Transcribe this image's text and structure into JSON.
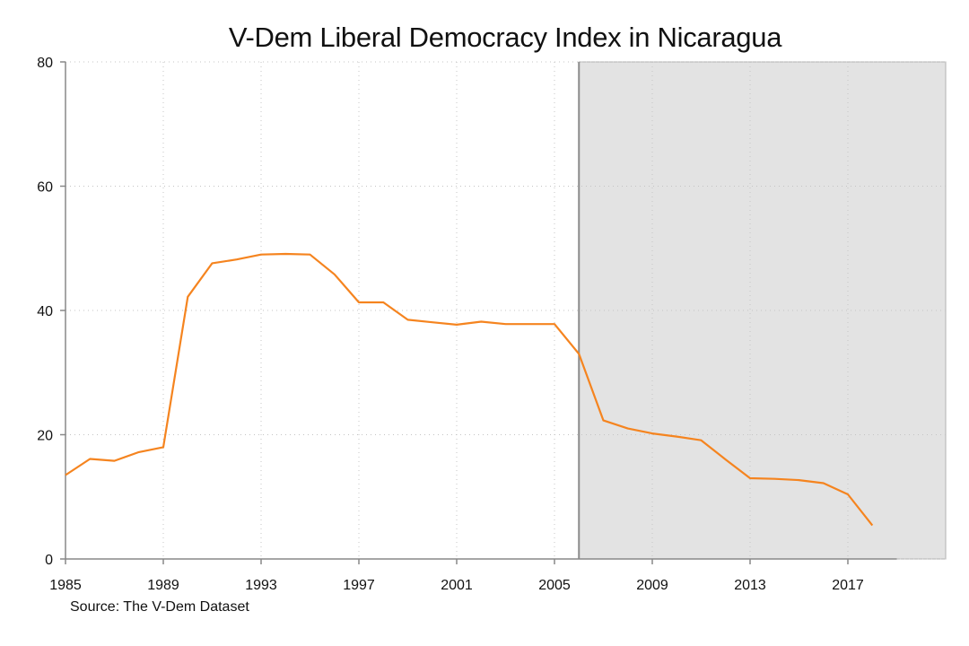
{
  "chart_data": {
    "type": "line",
    "title": "V-Dem Liberal Democracy Index in Nicaragua",
    "source": "Source: The V-Dem Dataset",
    "xlabel": "",
    "ylabel": "",
    "xlim": [
      1985,
      2021
    ],
    "ylim": [
      0,
      80
    ],
    "x_ticks": [
      1985,
      1989,
      1993,
      1997,
      2001,
      2005,
      2009,
      2013,
      2017
    ],
    "y_ticks": [
      0,
      20,
      40,
      60,
      80
    ],
    "grid": true,
    "shaded_region": {
      "x_start": 2006,
      "x_end": 2021,
      "color": "#e3e3e3"
    },
    "series": [
      {
        "color": "#f5841f",
        "x": [
          1985,
          1986,
          1987,
          1988,
          1989,
          1990,
          1991,
          1992,
          1993,
          1994,
          1995,
          1996,
          1997,
          1998,
          1999,
          2000,
          2001,
          2002,
          2003,
          2004,
          2005,
          2006,
          2007,
          2008,
          2009,
          2010,
          2011,
          2012,
          2013,
          2014,
          2015,
          2016,
          2017,
          2018
        ],
        "y": [
          13.5,
          16.1,
          15.8,
          17.2,
          18.0,
          42.2,
          47.6,
          48.2,
          49.0,
          49.1,
          49.0,
          45.8,
          41.3,
          41.3,
          38.5,
          38.1,
          37.7,
          38.2,
          37.8,
          37.8,
          37.8,
          33.0,
          22.3,
          21.0,
          20.2,
          19.7,
          19.1,
          16.0,
          13.0,
          12.9,
          12.7,
          12.2,
          10.4,
          5.4
        ]
      }
    ]
  }
}
